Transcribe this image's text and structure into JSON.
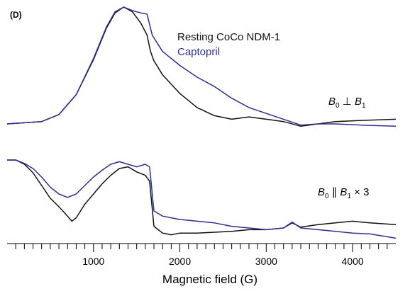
{
  "panel_label": "(D)",
  "legend": [
    {
      "label": "Resting CoCo NDM-1",
      "color": "#111111"
    },
    {
      "label": "Captopril",
      "color": "#2e2e8f"
    }
  ],
  "chart_data": {
    "type": "line",
    "xlabel": "Magnetic field (G)",
    "xlim": [
      0,
      4500
    ],
    "xticks": [
      1000,
      2000,
      3000,
      4000
    ],
    "minor_tick_step": 100,
    "y_axis_shown": false,
    "grid": false,
    "legend_position": "top-right",
    "spectra": [
      {
        "mode": "perpendicular",
        "mode_label": {
          "b0": "B",
          "sub0": "0",
          "rel": "⊥",
          "b1": "B",
          "sub1": "1",
          "suffix": ""
        },
        "series": [
          {
            "name": "Resting CoCo NDM-1",
            "color": "#111111",
            "points": [
              [
                0,
                0
              ],
              [
                400,
                0.02
              ],
              [
                600,
                0.08
              ],
              [
                800,
                0.25
              ],
              [
                1000,
                0.55
              ],
              [
                1150,
                0.82
              ],
              [
                1250,
                0.95
              ],
              [
                1350,
                1.0
              ],
              [
                1450,
                0.96
              ],
              [
                1550,
                0.86
              ],
              [
                1620,
                0.76
              ],
              [
                1660,
                0.62
              ],
              [
                1700,
                0.54
              ],
              [
                1800,
                0.42
              ],
              [
                2000,
                0.26
              ],
              [
                2200,
                0.14
              ],
              [
                2400,
                0.07
              ],
              [
                2600,
                0.04
              ],
              [
                2800,
                0.06
              ],
              [
                3000,
                0.04
              ],
              [
                3200,
                0.02
              ],
              [
                3400,
                -0.02
              ],
              [
                3600,
                0.0
              ],
              [
                3800,
                0.02
              ],
              [
                4100,
                0.03
              ],
              [
                4500,
                0.04
              ]
            ]
          },
          {
            "name": "Captopril",
            "color": "#2e2e8f",
            "points": [
              [
                0,
                0
              ],
              [
                400,
                0.02
              ],
              [
                600,
                0.08
              ],
              [
                800,
                0.25
              ],
              [
                1000,
                0.56
              ],
              [
                1150,
                0.83
              ],
              [
                1250,
                0.96
              ],
              [
                1350,
                1.0
              ],
              [
                1450,
                0.97
              ],
              [
                1550,
                0.95
              ],
              [
                1620,
                0.94
              ],
              [
                1680,
                0.76
              ],
              [
                1800,
                0.62
              ],
              [
                2000,
                0.5
              ],
              [
                2200,
                0.4
              ],
              [
                2400,
                0.32
              ],
              [
                2600,
                0.22
              ],
              [
                2800,
                0.14
              ],
              [
                3000,
                0.09
              ],
              [
                3200,
                0.04
              ],
              [
                3400,
                -0.01
              ],
              [
                3600,
                0.0
              ],
              [
                3800,
                0.0
              ],
              [
                4100,
                -0.01
              ],
              [
                4500,
                -0.02
              ]
            ]
          }
        ]
      },
      {
        "mode": "parallel",
        "mode_label": {
          "b0": "B",
          "sub0": "0",
          "rel": "∥",
          "b1": "B",
          "sub1": "1",
          "suffix": "× 3"
        },
        "series": [
          {
            "name": "Resting CoCo NDM-1",
            "color": "#111111",
            "points": [
              [
                0,
                0
              ],
              [
                100,
                0.0
              ],
              [
                200,
                -0.05
              ],
              [
                300,
                -0.15
              ],
              [
                400,
                -0.3
              ],
              [
                500,
                -0.45
              ],
              [
                600,
                -0.55
              ],
              [
                700,
                -0.66
              ],
              [
                750,
                -0.72
              ],
              [
                800,
                -0.68
              ],
              [
                900,
                -0.52
              ],
              [
                1000,
                -0.4
              ],
              [
                1100,
                -0.28
              ],
              [
                1200,
                -0.18
              ],
              [
                1300,
                -0.1
              ],
              [
                1400,
                -0.08
              ],
              [
                1500,
                -0.14
              ],
              [
                1600,
                -0.18
              ],
              [
                1650,
                -0.25
              ],
              [
                1700,
                -0.78
              ],
              [
                1800,
                -0.86
              ],
              [
                1900,
                -0.88
              ],
              [
                2000,
                -0.86
              ],
              [
                2200,
                -0.86
              ],
              [
                2400,
                -0.85
              ],
              [
                2600,
                -0.84
              ],
              [
                2800,
                -0.82
              ],
              [
                3000,
                -0.82
              ],
              [
                3200,
                -0.8
              ],
              [
                3300,
                -0.74
              ],
              [
                3400,
                -0.79
              ],
              [
                3600,
                -0.76
              ],
              [
                3800,
                -0.74
              ],
              [
                4000,
                -0.72
              ],
              [
                4200,
                -0.74
              ],
              [
                4500,
                -0.76
              ]
            ]
          },
          {
            "name": "Captopril",
            "color": "#2e2e8f",
            "points": [
              [
                0,
                0
              ],
              [
                100,
                0.0
              ],
              [
                200,
                -0.04
              ],
              [
                300,
                -0.1
              ],
              [
                400,
                -0.2
              ],
              [
                500,
                -0.32
              ],
              [
                600,
                -0.4
              ],
              [
                700,
                -0.44
              ],
              [
                800,
                -0.4
              ],
              [
                900,
                -0.3
              ],
              [
                1000,
                -0.2
              ],
              [
                1100,
                -0.12
              ],
              [
                1200,
                -0.05
              ],
              [
                1300,
                -0.02
              ],
              [
                1400,
                -0.05
              ],
              [
                1500,
                -0.08
              ],
              [
                1600,
                -0.05
              ],
              [
                1650,
                -0.08
              ],
              [
                1700,
                -0.6
              ],
              [
                1800,
                -0.66
              ],
              [
                1900,
                -0.68
              ],
              [
                2000,
                -0.7
              ],
              [
                2200,
                -0.72
              ],
              [
                2400,
                -0.74
              ],
              [
                2600,
                -0.78
              ],
              [
                2800,
                -0.8
              ],
              [
                3000,
                -0.82
              ],
              [
                3200,
                -0.8
              ],
              [
                3300,
                -0.73
              ],
              [
                3400,
                -0.8
              ],
              [
                3600,
                -0.82
              ],
              [
                3800,
                -0.84
              ],
              [
                4000,
                -0.86
              ],
              [
                4200,
                -0.87
              ],
              [
                4500,
                -0.92
              ]
            ]
          }
        ]
      }
    ]
  }
}
